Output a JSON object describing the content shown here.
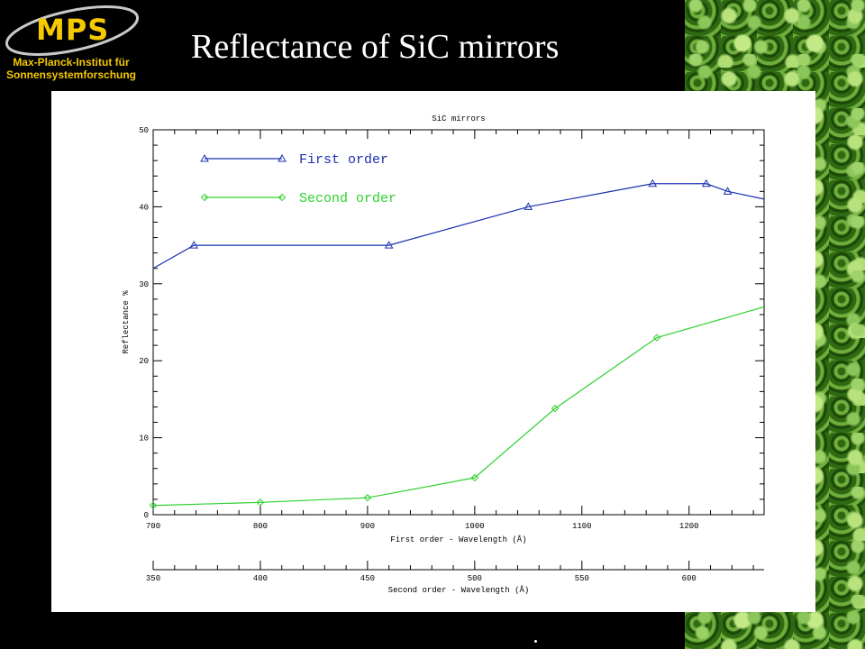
{
  "slide": {
    "title": "Reflectance of SiC mirrors",
    "logo": {
      "text": "MPS",
      "subtitle_line1": "Max-Planck-Institut für",
      "subtitle_line2": "Sonnensystemforschung",
      "color": "#f5c800"
    }
  },
  "chart_data": {
    "type": "line",
    "title": "SiC mirrors",
    "ylabel": "Reflectance %",
    "xlabel": "First order - Wavelength (Å)",
    "x2label": "Second order - Wavelength (Å)",
    "xlim": [
      700,
      1270
    ],
    "x2lim": [
      350,
      635
    ],
    "ylim": [
      0,
      50
    ],
    "xticks": [
      "700",
      "800",
      "900",
      "1000",
      "1100",
      "1200"
    ],
    "x2ticks": [
      "350",
      "400",
      "450",
      "500",
      "550",
      "600"
    ],
    "yticks": [
      "0",
      "10",
      "20",
      "30",
      "40",
      "50"
    ],
    "legend_position": "top-left",
    "series": [
      {
        "name": "First order",
        "color": "#1a2fb0",
        "marker": "triangle",
        "x": [
          700,
          738,
          920,
          1050,
          1166,
          1216,
          1236,
          1270
        ],
        "values": [
          32,
          35,
          35,
          40,
          43,
          43,
          42,
          41
        ],
        "marked": [
          false,
          true,
          true,
          true,
          true,
          true,
          true,
          false
        ]
      },
      {
        "name": "Second order",
        "color": "#2ed12e",
        "marker": "diamond",
        "x": [
          700,
          800,
          900,
          1000,
          1075,
          1170,
          1270
        ],
        "values": [
          1.2,
          1.6,
          2.2,
          4.8,
          13.8,
          23,
          27
        ],
        "marked": [
          true,
          true,
          true,
          true,
          true,
          true,
          false
        ]
      }
    ]
  }
}
